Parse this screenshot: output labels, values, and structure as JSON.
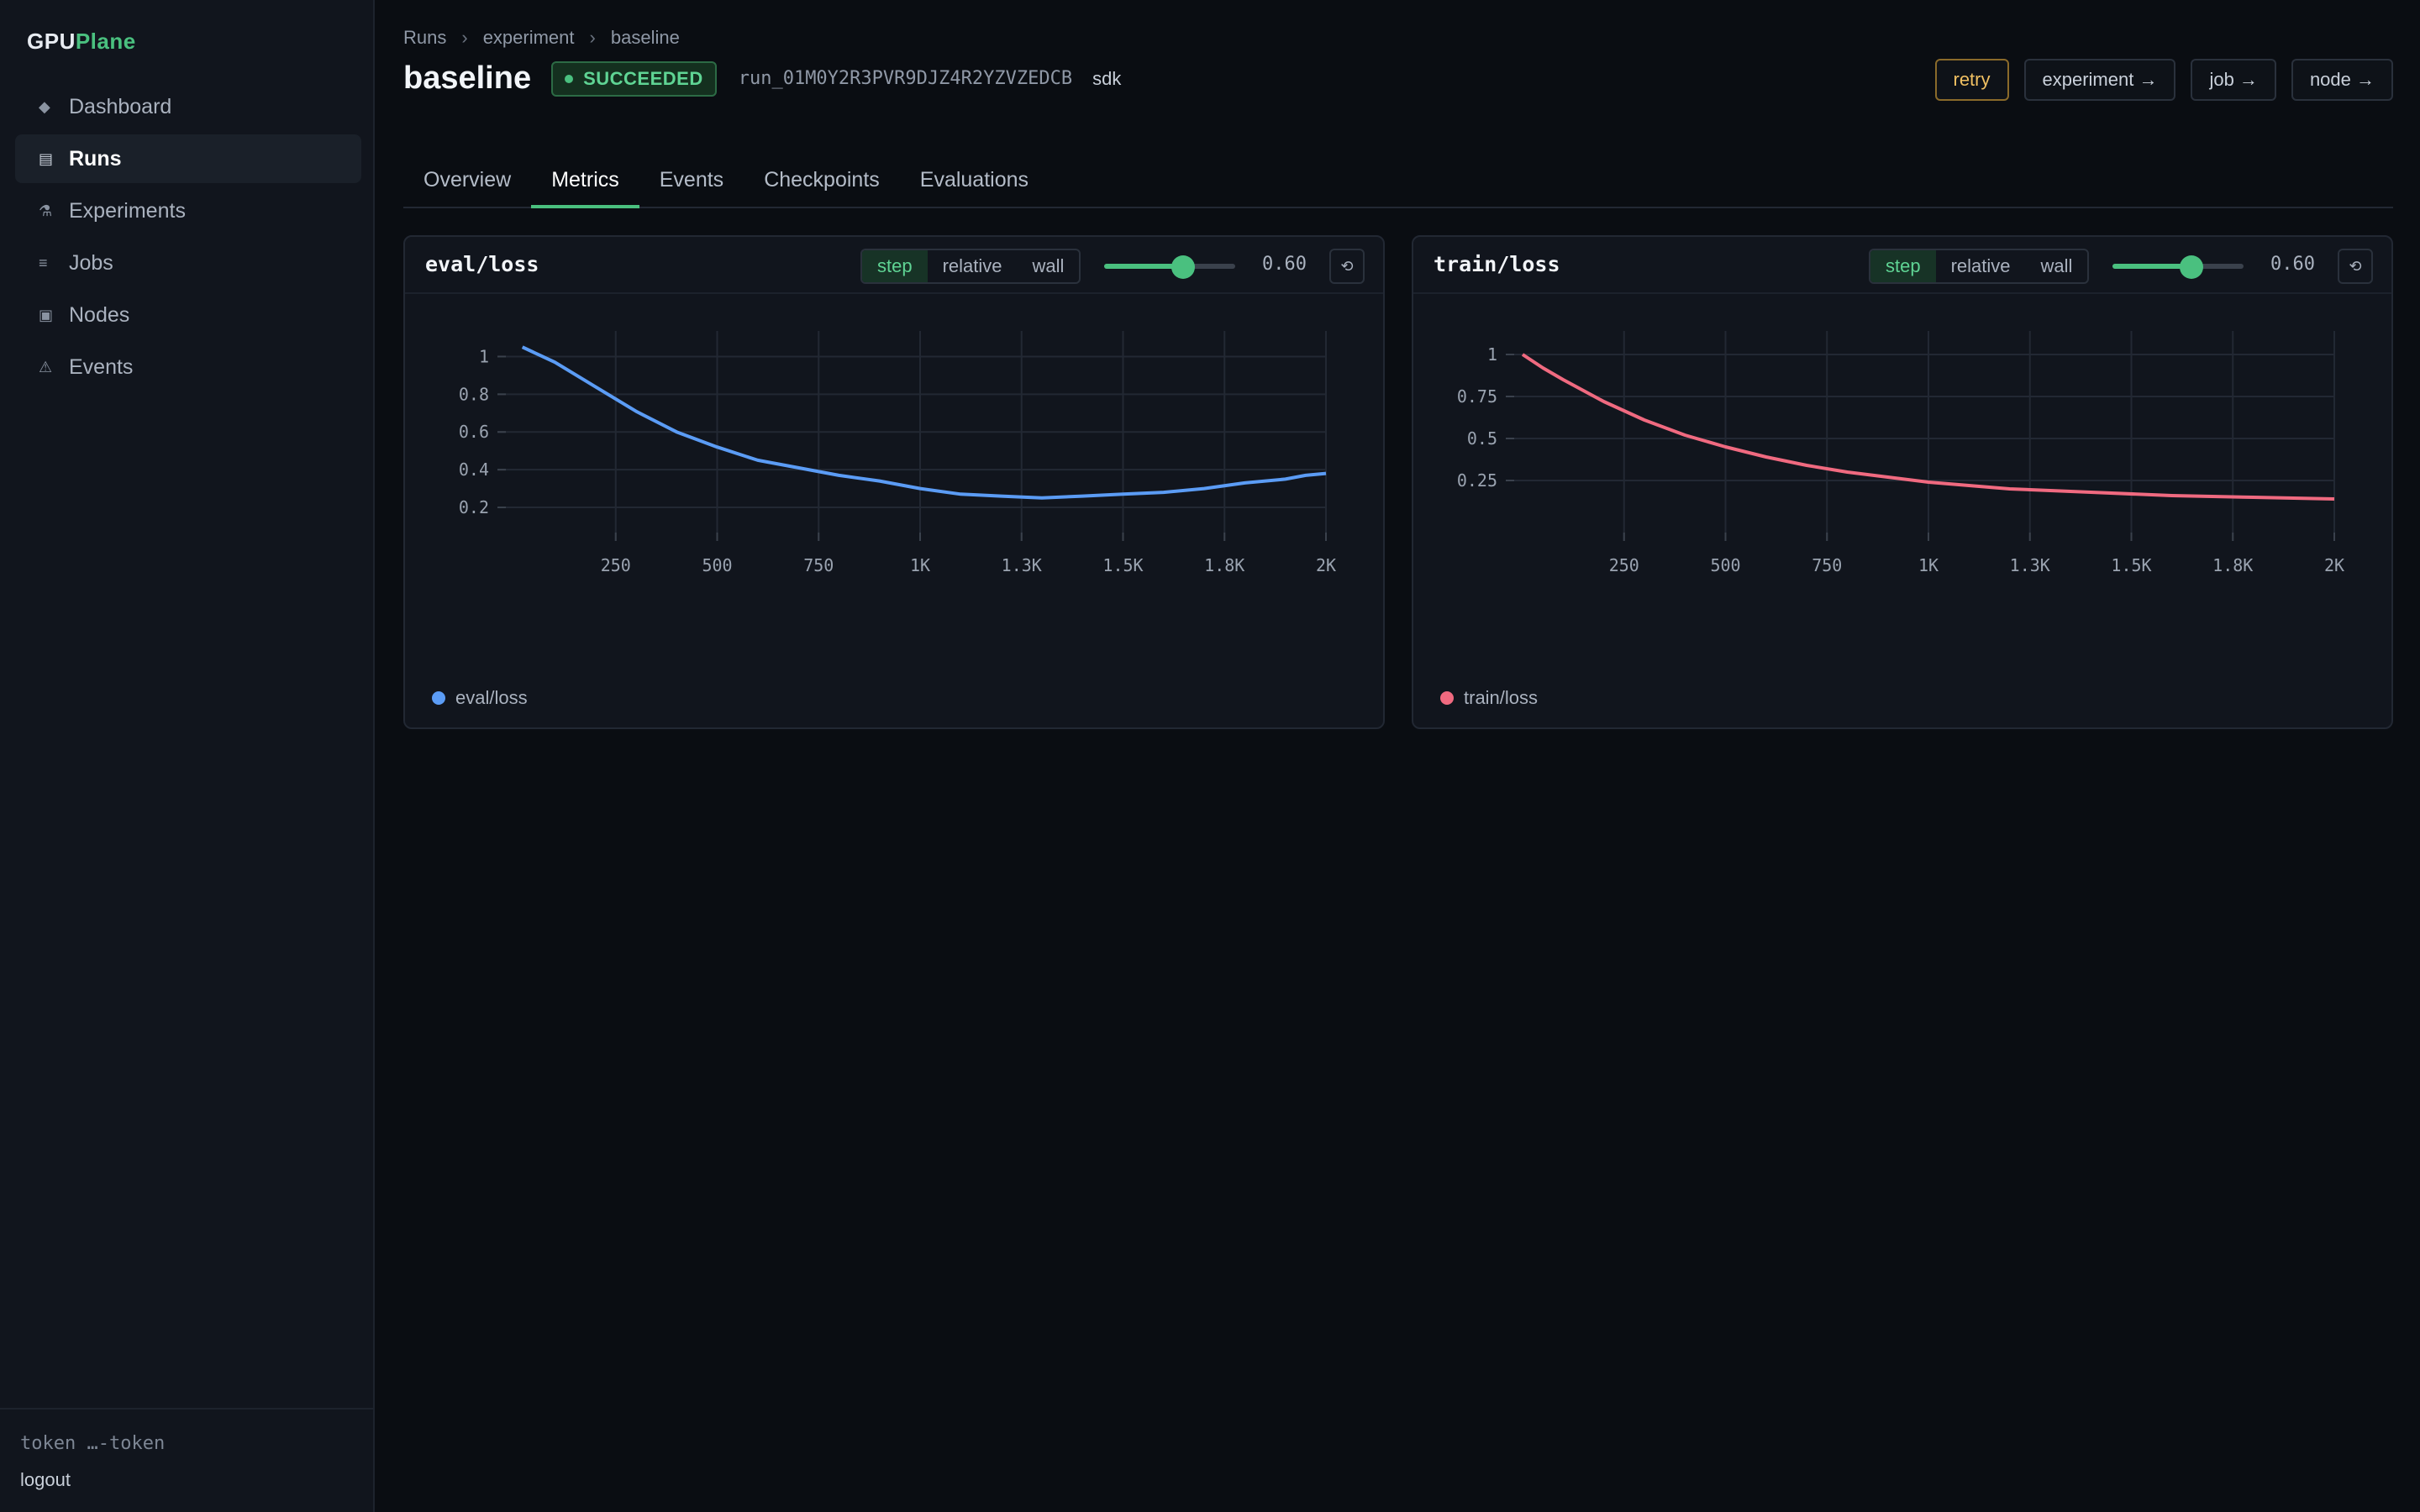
{
  "brand": {
    "prefix": "GPU",
    "suffix": "Plane"
  },
  "sidebar": {
    "items": [
      {
        "label": "Dashboard",
        "icon": "diamond-icon",
        "glyph": "◆"
      },
      {
        "label": "Runs",
        "icon": "runs-icon",
        "glyph": "▤",
        "active": true
      },
      {
        "label": "Experiments",
        "icon": "flask-icon",
        "glyph": "⚗"
      },
      {
        "label": "Jobs",
        "icon": "list-icon",
        "glyph": "≡"
      },
      {
        "label": "Nodes",
        "icon": "node-icon",
        "glyph": "▣"
      },
      {
        "label": "Events",
        "icon": "warning-icon",
        "glyph": "⚠"
      }
    ],
    "token": "token …-token",
    "logout": "logout"
  },
  "breadcrumb": {
    "root": "Runs",
    "middle": "experiment",
    "current": "baseline",
    "sep": "›"
  },
  "header": {
    "title": "baseline",
    "status": "SUCCEEDED",
    "run_id": "run_01M0Y2R3PVR9DJZ4R2YZVZEDCB",
    "source": "sdk",
    "actions": {
      "retry": "retry",
      "experiment": "experiment →",
      "job": "job →",
      "node": "node →"
    }
  },
  "tabs": [
    "Overview",
    "Metrics",
    "Events",
    "Checkpoints",
    "Evaluations"
  ],
  "active_tab": "Metrics",
  "colors": {
    "accent": "#4ac07f",
    "eval": "#5b9cf5",
    "train": "#f06a80"
  },
  "panels": [
    {
      "title": "eval/loss",
      "x_modes": [
        "step",
        "relative",
        "wall"
      ],
      "active_mode": "step",
      "smoothing": 0.6,
      "smoothing_label": "0.60",
      "reset_glyph": "⟲",
      "legend": "eval/loss"
    },
    {
      "title": "train/loss",
      "x_modes": [
        "step",
        "relative",
        "wall"
      ],
      "active_mode": "step",
      "smoothing": 0.6,
      "smoothing_label": "0.60",
      "reset_glyph": "⟲",
      "legend": "train/loss"
    }
  ],
  "chart_data": [
    {
      "type": "line",
      "title": "eval/loss",
      "color": "#5b9cf5",
      "xlim": [
        0,
        2000
      ],
      "ylim": [
        0.12,
        1.1
      ],
      "x_ticks": [
        250,
        500,
        750,
        1000,
        1250,
        1500,
        1750,
        2000
      ],
      "x_tick_labels": [
        "250",
        "500",
        "750",
        "1K",
        "1.3K",
        "1.5K",
        "1.8K",
        "2K"
      ],
      "y_ticks": [
        1,
        0.8,
        0.6,
        0.4,
        0.2
      ],
      "y_tick_labels": [
        "1",
        "0.8",
        "0.6",
        "0.4",
        "0.2"
      ],
      "grid": true,
      "series": [
        {
          "name": "eval/loss",
          "x": [
            20,
            100,
            200,
            300,
            400,
            500,
            600,
            700,
            800,
            900,
            1000,
            1100,
            1200,
            1300,
            1400,
            1500,
            1600,
            1700,
            1800,
            1900,
            1950,
            2000
          ],
          "y": [
            1.05,
            0.97,
            0.84,
            0.71,
            0.6,
            0.52,
            0.45,
            0.41,
            0.37,
            0.34,
            0.3,
            0.27,
            0.26,
            0.25,
            0.26,
            0.27,
            0.28,
            0.3,
            0.33,
            0.35,
            0.37,
            0.38
          ]
        }
      ]
    },
    {
      "type": "line",
      "title": "train/loss",
      "color": "#f06a80",
      "xlim": [
        0,
        2000
      ],
      "ylim": [
        0.0,
        1.1
      ],
      "x_ticks": [
        250,
        500,
        750,
        1000,
        1250,
        1500,
        1750,
        2000
      ],
      "x_tick_labels": [
        "250",
        "500",
        "750",
        "1K",
        "1.3K",
        "1.5K",
        "1.8K",
        "2K"
      ],
      "y_ticks": [
        1,
        0.75,
        0.5,
        0.25
      ],
      "y_tick_labels": [
        "1",
        "0.75",
        "0.5",
        "0.25"
      ],
      "grid": true,
      "series": [
        {
          "name": "train/loss",
          "x": [
            0,
            50,
            100,
            200,
            300,
            400,
            500,
            600,
            700,
            800,
            900,
            1000,
            1200,
            1400,
            1600,
            1800,
            2000
          ],
          "y": [
            1.0,
            0.92,
            0.85,
            0.72,
            0.61,
            0.52,
            0.45,
            0.39,
            0.34,
            0.3,
            0.27,
            0.24,
            0.2,
            0.18,
            0.16,
            0.15,
            0.14
          ]
        }
      ]
    }
  ]
}
